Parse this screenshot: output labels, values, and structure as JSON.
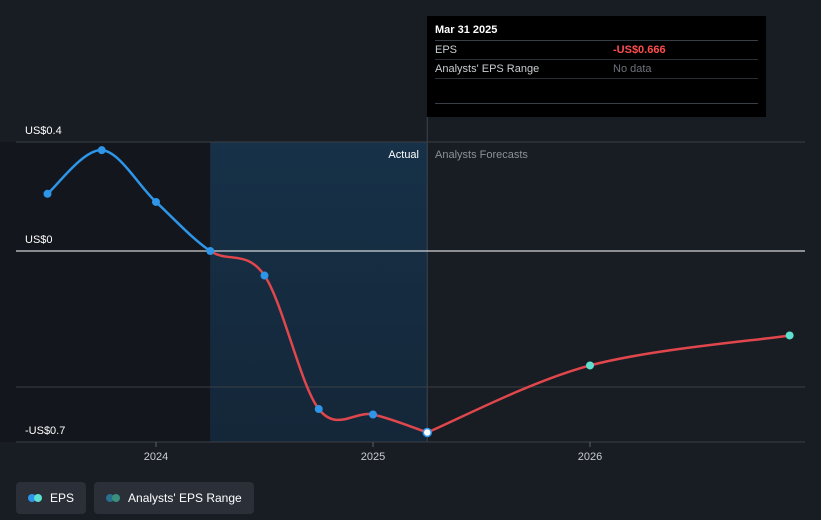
{
  "chart_data": {
    "type": "line",
    "y_ticks": [
      {
        "label": "US$0.4",
        "value": 0.4
      },
      {
        "label": "US$0",
        "value": 0
      },
      {
        "label": "-US$0.7",
        "value": -0.7
      }
    ],
    "x_ticks": [
      {
        "label": "2024",
        "value": 2024.0
      },
      {
        "label": "2025",
        "value": 2025.0
      },
      {
        "label": "2026",
        "value": 2026.0
      }
    ],
    "region_labels": {
      "actual": "Actual",
      "forecast": "Analysts Forecasts"
    },
    "actual_start": 2024.25,
    "forecast_start": 2025.25,
    "series": [
      {
        "name": "EPS",
        "color_positive": "#2e95e8",
        "color_negative": "#e0474c",
        "points": [
          {
            "x": 2023.5,
            "y": 0.21
          },
          {
            "x": 2023.75,
            "y": 0.37
          },
          {
            "x": 2024.0,
            "y": 0.18
          },
          {
            "x": 2024.25,
            "y": 0.0
          },
          {
            "x": 2024.5,
            "y": -0.09
          },
          {
            "x": 2024.75,
            "y": -0.58
          },
          {
            "x": 2025.0,
            "y": -0.6
          },
          {
            "x": 2025.25,
            "y": -0.666
          }
        ]
      },
      {
        "name": "EPS forecast",
        "color": "#e0474c",
        "marker_color": "#5ee0d1",
        "points": [
          {
            "x": 2025.25,
            "y": -0.666
          },
          {
            "x": 2026.0,
            "y": -0.42
          },
          {
            "x": 2026.92,
            "y": -0.31
          }
        ]
      }
    ]
  },
  "tooltip": {
    "date": "Mar 31 2025",
    "rows": [
      {
        "label": "EPS",
        "value": "-US$0.666"
      },
      {
        "label": "Analysts' EPS Range",
        "value": "No data"
      }
    ]
  },
  "legend": [
    {
      "label": "EPS",
      "colors": [
        "#2e95e8",
        "#5ee0d1"
      ]
    },
    {
      "label": "Analysts' EPS Range",
      "colors": [
        "#2b6f8f",
        "#3a8f7f"
      ]
    }
  ]
}
